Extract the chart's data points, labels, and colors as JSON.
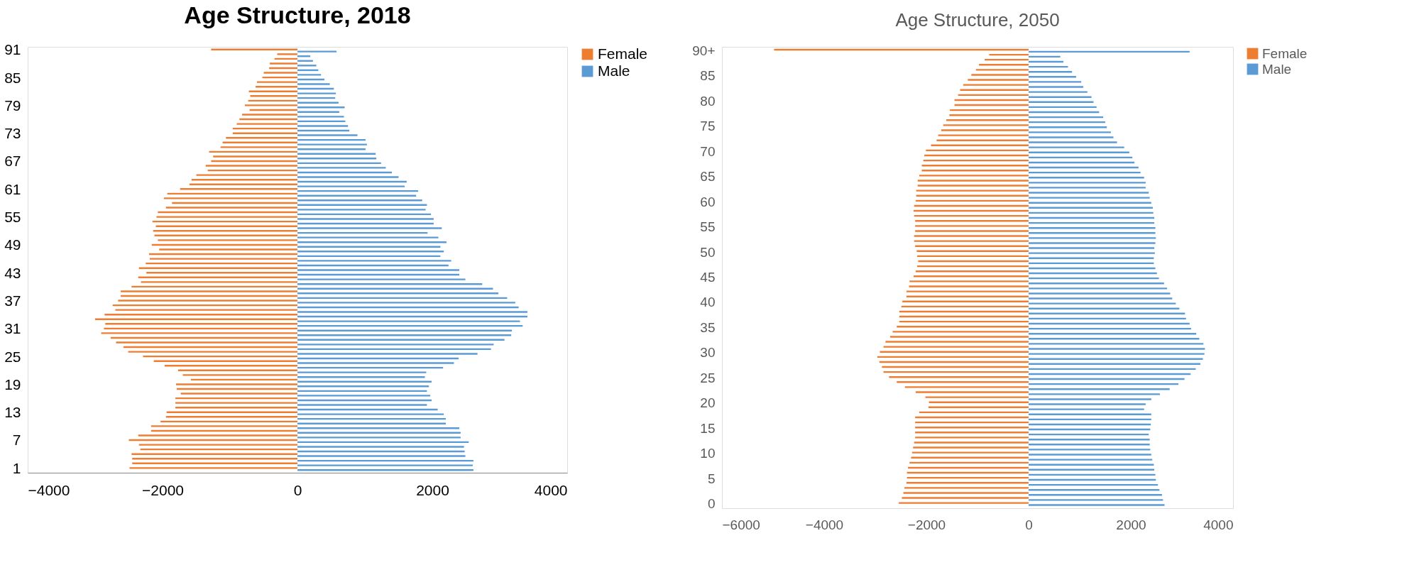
{
  "chart_data": [
    {
      "type": "bar",
      "orientation": "horizontal",
      "title": "Age Structure, 2018",
      "legend": "right",
      "grid": false,
      "categories": [
        "91",
        null,
        null,
        null,
        null,
        null,
        "85",
        null,
        null,
        null,
        null,
        null,
        "79",
        null,
        null,
        null,
        null,
        null,
        "73",
        null,
        null,
        null,
        null,
        null,
        "67",
        null,
        null,
        null,
        null,
        null,
        "61",
        null,
        null,
        null,
        null,
        null,
        "55",
        null,
        null,
        null,
        null,
        null,
        "49",
        null,
        null,
        null,
        null,
        null,
        "43",
        null,
        null,
        null,
        null,
        null,
        "37",
        null,
        null,
        null,
        null,
        null,
        "31",
        null,
        null,
        null,
        null,
        null,
        "25",
        null,
        null,
        null,
        null,
        null,
        "19",
        null,
        null,
        null,
        null,
        null,
        "13",
        null,
        null,
        null,
        null,
        null,
        "7",
        null,
        null,
        null,
        null,
        null,
        "1"
      ],
      "xlim": [
        -4000,
        4000
      ],
      "xticks": [
        -4000,
        -2000,
        0,
        2000,
        4000
      ],
      "series": [
        {
          "name": "Female",
          "color": "#ed7d31",
          "values": [
            -1280,
            -300,
            -340,
            -410,
            -420,
            -500,
            -520,
            -600,
            -620,
            -720,
            -700,
            -730,
            -780,
            -710,
            -820,
            -860,
            -900,
            -960,
            -960,
            -1060,
            -1110,
            -1140,
            -1310,
            -1250,
            -1280,
            -1360,
            -1330,
            -1500,
            -1570,
            -1600,
            -1740,
            -1930,
            -1980,
            -1860,
            -1950,
            -2070,
            -2090,
            -2150,
            -2100,
            -2140,
            -2120,
            -2070,
            -2160,
            -2050,
            -2200,
            -2190,
            -2250,
            -2350,
            -2240,
            -2360,
            -2320,
            -2460,
            -2620,
            -2620,
            -2660,
            -2740,
            -2700,
            -2860,
            -3000,
            -2850,
            -2870,
            -2910,
            -2770,
            -2690,
            -2580,
            -2510,
            -2290,
            -2130,
            -1970,
            -1770,
            -1700,
            -1580,
            -1800,
            -1790,
            -1730,
            -1810,
            -1810,
            -1810,
            -1940,
            -1950,
            -2030,
            -2170,
            -2170,
            -2360,
            -2500,
            -2350,
            -2330,
            -2460,
            -2450,
            -2450,
            -2490
          ]
        },
        {
          "name": "Male",
          "color": "#5b9bd5",
          "values": [
            580,
            190,
            230,
            280,
            310,
            350,
            400,
            480,
            540,
            570,
            560,
            610,
            700,
            620,
            690,
            710,
            750,
            770,
            890,
            1010,
            1030,
            1010,
            1160,
            1170,
            1240,
            1310,
            1400,
            1500,
            1620,
            1590,
            1790,
            1760,
            1850,
            1920,
            1900,
            1980,
            2020,
            2020,
            2140,
            1930,
            2090,
            2210,
            2120,
            2170,
            2120,
            2280,
            2240,
            2400,
            2400,
            2490,
            2740,
            2900,
            2980,
            3110,
            3230,
            3280,
            3410,
            3410,
            3300,
            3340,
            3180,
            3170,
            3070,
            2910,
            2870,
            2670,
            2390,
            2320,
            2160,
            1910,
            1890,
            1990,
            1950,
            1920,
            1970,
            1990,
            1920,
            2080,
            2170,
            2200,
            2200,
            2400,
            2420,
            2420,
            2540,
            2470,
            2480,
            2490,
            2610,
            2600,
            2610
          ]
        }
      ]
    },
    {
      "type": "bar",
      "orientation": "horizontal",
      "title": "Age Structure, 2050",
      "legend": "right",
      "grid": false,
      "categories": [
        "90+",
        null,
        null,
        null,
        null,
        "85",
        null,
        null,
        null,
        null,
        "80",
        null,
        null,
        null,
        null,
        "75",
        null,
        null,
        null,
        null,
        "70",
        null,
        null,
        null,
        null,
        "65",
        null,
        null,
        null,
        null,
        "60",
        null,
        null,
        null,
        null,
        "55",
        null,
        null,
        null,
        null,
        "50",
        null,
        null,
        null,
        null,
        "45",
        null,
        null,
        null,
        null,
        "40",
        null,
        null,
        null,
        null,
        "35",
        null,
        null,
        null,
        null,
        "30",
        null,
        null,
        null,
        null,
        "25",
        null,
        null,
        null,
        null,
        "20",
        null,
        null,
        null,
        null,
        "15",
        null,
        null,
        null,
        null,
        "10",
        null,
        null,
        null,
        null,
        "5",
        null,
        null,
        null,
        null,
        "0"
      ],
      "xlim": [
        -6000,
        4000
      ],
      "xticks": [
        -6000,
        -4000,
        -2000,
        0,
        2000,
        4000
      ],
      "series": [
        {
          "name": "Female",
          "color": "#ed7d31",
          "values": [
            -4980,
            -770,
            -860,
            -970,
            -1030,
            -1120,
            -1190,
            -1280,
            -1340,
            -1380,
            -1450,
            -1450,
            -1540,
            -1550,
            -1610,
            -1670,
            -1710,
            -1770,
            -1800,
            -1910,
            -2010,
            -2040,
            -2060,
            -2090,
            -2090,
            -2140,
            -2170,
            -2170,
            -2200,
            -2200,
            -2210,
            -2240,
            -2250,
            -2240,
            -2220,
            -2220,
            -2220,
            -2240,
            -2240,
            -2220,
            -2190,
            -2180,
            -2160,
            -2180,
            -2210,
            -2250,
            -2330,
            -2340,
            -2390,
            -2390,
            -2470,
            -2490,
            -2530,
            -2530,
            -2530,
            -2580,
            -2660,
            -2710,
            -2800,
            -2840,
            -2910,
            -2960,
            -2920,
            -2870,
            -2840,
            -2730,
            -2580,
            -2420,
            -2210,
            -2020,
            -1950,
            -1960,
            -2140,
            -2220,
            -2220,
            -2220,
            -2220,
            -2220,
            -2240,
            -2260,
            -2280,
            -2300,
            -2330,
            -2360,
            -2380,
            -2380,
            -2390,
            -2430,
            -2450,
            -2480,
            -2540
          ]
        },
        {
          "name": "Male",
          "color": "#5b9bd5",
          "values": [
            3150,
            620,
            680,
            770,
            850,
            930,
            1030,
            1070,
            1150,
            1230,
            1270,
            1330,
            1380,
            1460,
            1500,
            1530,
            1610,
            1660,
            1730,
            1870,
            1970,
            2030,
            2070,
            2150,
            2190,
            2260,
            2290,
            2290,
            2350,
            2370,
            2400,
            2430,
            2440,
            2460,
            2460,
            2480,
            2480,
            2490,
            2480,
            2460,
            2470,
            2450,
            2450,
            2480,
            2510,
            2550,
            2650,
            2710,
            2770,
            2810,
            2880,
            2950,
            3060,
            3080,
            3150,
            3180,
            3280,
            3340,
            3420,
            3450,
            3440,
            3410,
            3360,
            3270,
            3170,
            3050,
            2930,
            2760,
            2570,
            2400,
            2290,
            2260,
            2400,
            2400,
            2390,
            2380,
            2350,
            2370,
            2370,
            2380,
            2400,
            2420,
            2450,
            2460,
            2480,
            2490,
            2530,
            2560,
            2610,
            2630,
            2660
          ]
        }
      ]
    }
  ]
}
